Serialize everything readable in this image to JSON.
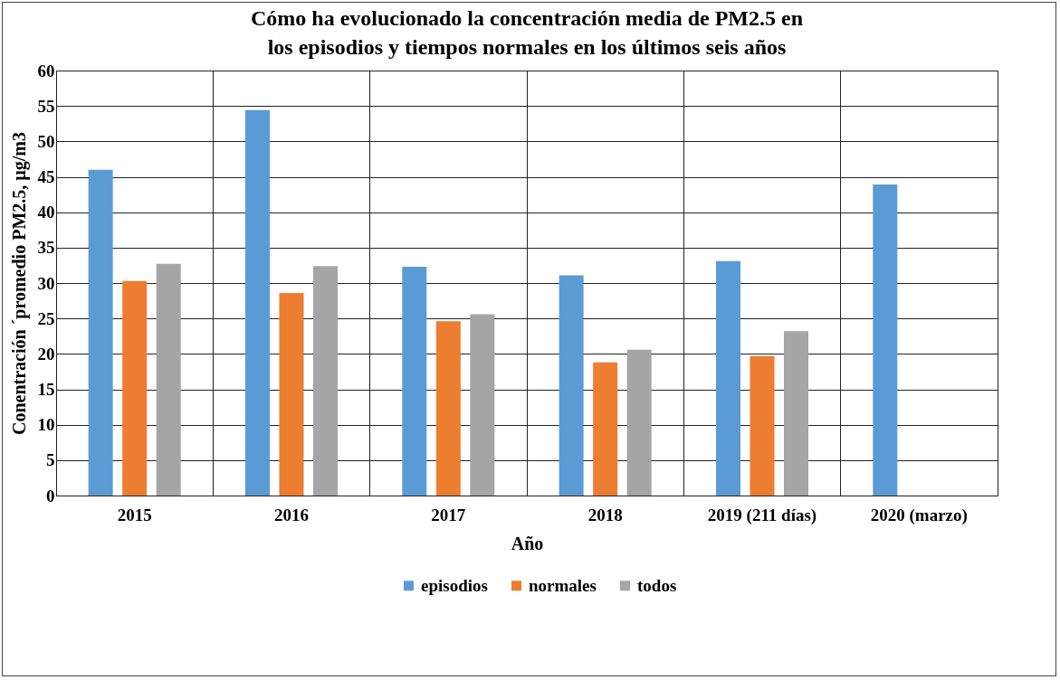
{
  "chart_data": {
    "type": "bar",
    "title": "Cómo ha evolucionado la concentración media de PM2.5 en los episodios y tiempos normales en los últimos seis años",
    "xlabel": "Año",
    "ylabel": "Conentración ´promedio PM2.5, µg/m3",
    "categories": [
      "2015",
      "2016",
      "2017",
      "2018",
      "2019 (211 días)",
      "2020 (marzo)"
    ],
    "series": [
      {
        "name": "episodios",
        "color": "#5b9bd5",
        "values": [
          46.0,
          54.4,
          32.3,
          31.1,
          33.1,
          43.9
        ]
      },
      {
        "name": "normales",
        "color": "#ed7d31",
        "values": [
          30.3,
          28.6,
          24.6,
          18.8,
          19.7,
          null
        ]
      },
      {
        "name": "todos",
        "color": "#a5a5a5",
        "values": [
          32.7,
          32.4,
          25.6,
          20.6,
          23.2,
          null
        ]
      }
    ],
    "ylim": [
      0,
      60
    ],
    "yticks": [
      0,
      5,
      10,
      15,
      20,
      25,
      30,
      35,
      40,
      45,
      50,
      55,
      60
    ],
    "grid": true,
    "legend": "bottom"
  }
}
